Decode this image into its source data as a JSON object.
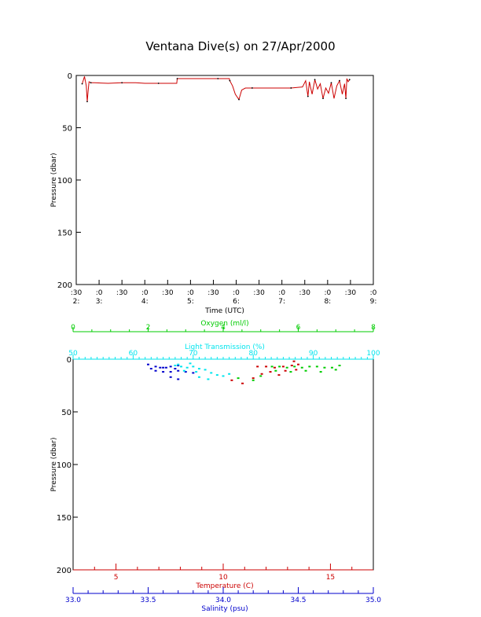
{
  "title": "Ventana Dive(s) on 27/Apr/2000",
  "colors": {
    "axis": "#000000",
    "trace": "#cc0000",
    "oxygen": "#00cc00",
    "light": "#00e5ee",
    "temperature": "#cc0000",
    "salinity": "#0000cc"
  },
  "chart_data": [
    {
      "type": "line",
      "ylabel": "Pressure (dbar)",
      "xlabel": "Time (UTC)",
      "ylim": [
        200,
        0
      ],
      "yticks": [
        "0",
        "50",
        "100",
        "150",
        "200"
      ],
      "xticks": [
        {
          "top": ":30",
          "bottom": "2:"
        },
        {
          "top": ":0",
          "bottom": "3:"
        },
        {
          "top": ":30",
          "bottom": ""
        },
        {
          "top": ":0",
          "bottom": "4:"
        },
        {
          "top": ":30",
          "bottom": ""
        },
        {
          "top": ":0",
          "bottom": "5:"
        },
        {
          "top": ":30",
          "bottom": ""
        },
        {
          "top": ":0",
          "bottom": "6:"
        },
        {
          "top": ":30",
          "bottom": ""
        },
        {
          "top": ":0",
          "bottom": "7:"
        },
        {
          "top": ":30",
          "bottom": ""
        },
        {
          "top": ":0",
          "bottom": "8:"
        },
        {
          "top": ":30",
          "bottom": ""
        },
        {
          "top": ":0",
          "bottom": "9:"
        }
      ],
      "xlim_hours": [
        2.5,
        9.0
      ],
      "series": [
        {
          "x_hours": [
            2.63,
            2.68,
            2.72,
            2.74,
            2.76,
            2.78,
            2.82,
            2.9,
            3.2,
            3.5,
            3.8,
            4.0,
            4.3,
            4.6,
            4.7,
            4.71,
            5.0,
            5.3,
            5.6,
            5.8,
            5.85,
            5.86,
            5.92,
            5.98,
            6.06,
            6.12,
            6.2,
            6.35,
            6.6,
            6.9,
            7.2,
            7.45,
            7.52,
            7.57,
            7.6,
            7.66,
            7.72,
            7.78,
            7.84,
            7.9,
            7.96,
            8.02,
            8.08,
            8.14,
            8.2,
            8.26,
            8.32,
            8.37,
            8.4,
            8.42,
            8.45,
            8.48
          ],
          "pressure": [
            8,
            1,
            10,
            25,
            15,
            6,
            7,
            7,
            7.5,
            7,
            7,
            7.5,
            7.5,
            7.5,
            7.5,
            3,
            3,
            3,
            3,
            3,
            3,
            5,
            10,
            18,
            23,
            14,
            12,
            12,
            12,
            12,
            12,
            11,
            5,
            20,
            6,
            18,
            4,
            13,
            8,
            22,
            12,
            17,
            7,
            22,
            10,
            5,
            18,
            8,
            22,
            3,
            6,
            4
          ]
        }
      ]
    },
    {
      "type": "scatter",
      "ylabel": "Pressure (dbar)",
      "ylim": [
        200,
        0
      ],
      "yticks": [
        "0",
        "50",
        "100",
        "150",
        "200"
      ],
      "axes": [
        {
          "name": "Oxygen (ml/l)",
          "range": [
            0,
            8
          ],
          "ticks": [
            "0",
            "2",
            "4",
            "6",
            "8"
          ]
        },
        {
          "name": "Light Transmission (%)",
          "range": [
            50,
            100
          ],
          "ticks": [
            "50",
            "60",
            "70",
            "80",
            "90",
            "100"
          ]
        },
        {
          "name": "Temperature (C)",
          "range": [
            3.0,
            17.0
          ],
          "ticks": [
            "5",
            "10",
            "15"
          ]
        },
        {
          "name": "Salinity (psu)",
          "range": [
            33.0,
            35.0
          ],
          "ticks": [
            "33.0",
            "33.5",
            "34.0",
            "34.5",
            "35.0"
          ]
        }
      ],
      "series": [
        {
          "name": "salinity",
          "x": [
            33.5,
            33.55,
            33.6,
            33.65,
            33.7,
            33.52,
            33.58,
            33.62,
            33.68,
            33.55,
            33.6,
            33.65,
            33.7,
            33.75,
            33.8,
            33.65,
            33.7
          ],
          "y": [
            5,
            7,
            8,
            7,
            6,
            9,
            8,
            8,
            9,
            11,
            12,
            12,
            11,
            12,
            13,
            17,
            19
          ]
        },
        {
          "name": "light transmission",
          "x": [
            67,
            68,
            69,
            70,
            71,
            72,
            68.5,
            70.5,
            73,
            74,
            71,
            72.5,
            75,
            76,
            67.5,
            69.5
          ],
          "y": [
            6,
            7,
            8,
            7,
            9,
            10,
            11,
            12,
            13,
            15,
            17,
            19,
            16,
            14,
            5,
            4
          ]
        },
        {
          "name": "oxygen",
          "x": [
            5.3,
            5.5,
            5.7,
            5.9,
            6.1,
            6.3,
            6.5,
            6.7,
            6.9,
            7.1,
            5.4,
            5.8,
            6.2,
            6.6,
            7.0,
            4.4,
            4.8,
            5.0
          ],
          "y": [
            7,
            7,
            8,
            7,
            8,
            7,
            7,
            8,
            8,
            6,
            11,
            12,
            11,
            12,
            10,
            18,
            20,
            16
          ]
        },
        {
          "name": "temperature",
          "x": [
            11.6,
            12.0,
            12.4,
            12.8,
            13.2,
            13.5,
            12.2,
            12.9,
            13.4,
            11.8,
            12.6,
            10.4,
            10.9,
            11.4,
            13.3
          ],
          "y": [
            7,
            7,
            8,
            7,
            6,
            5,
            12,
            11,
            10,
            14,
            15,
            20,
            23,
            18,
            2
          ]
        }
      ]
    }
  ]
}
